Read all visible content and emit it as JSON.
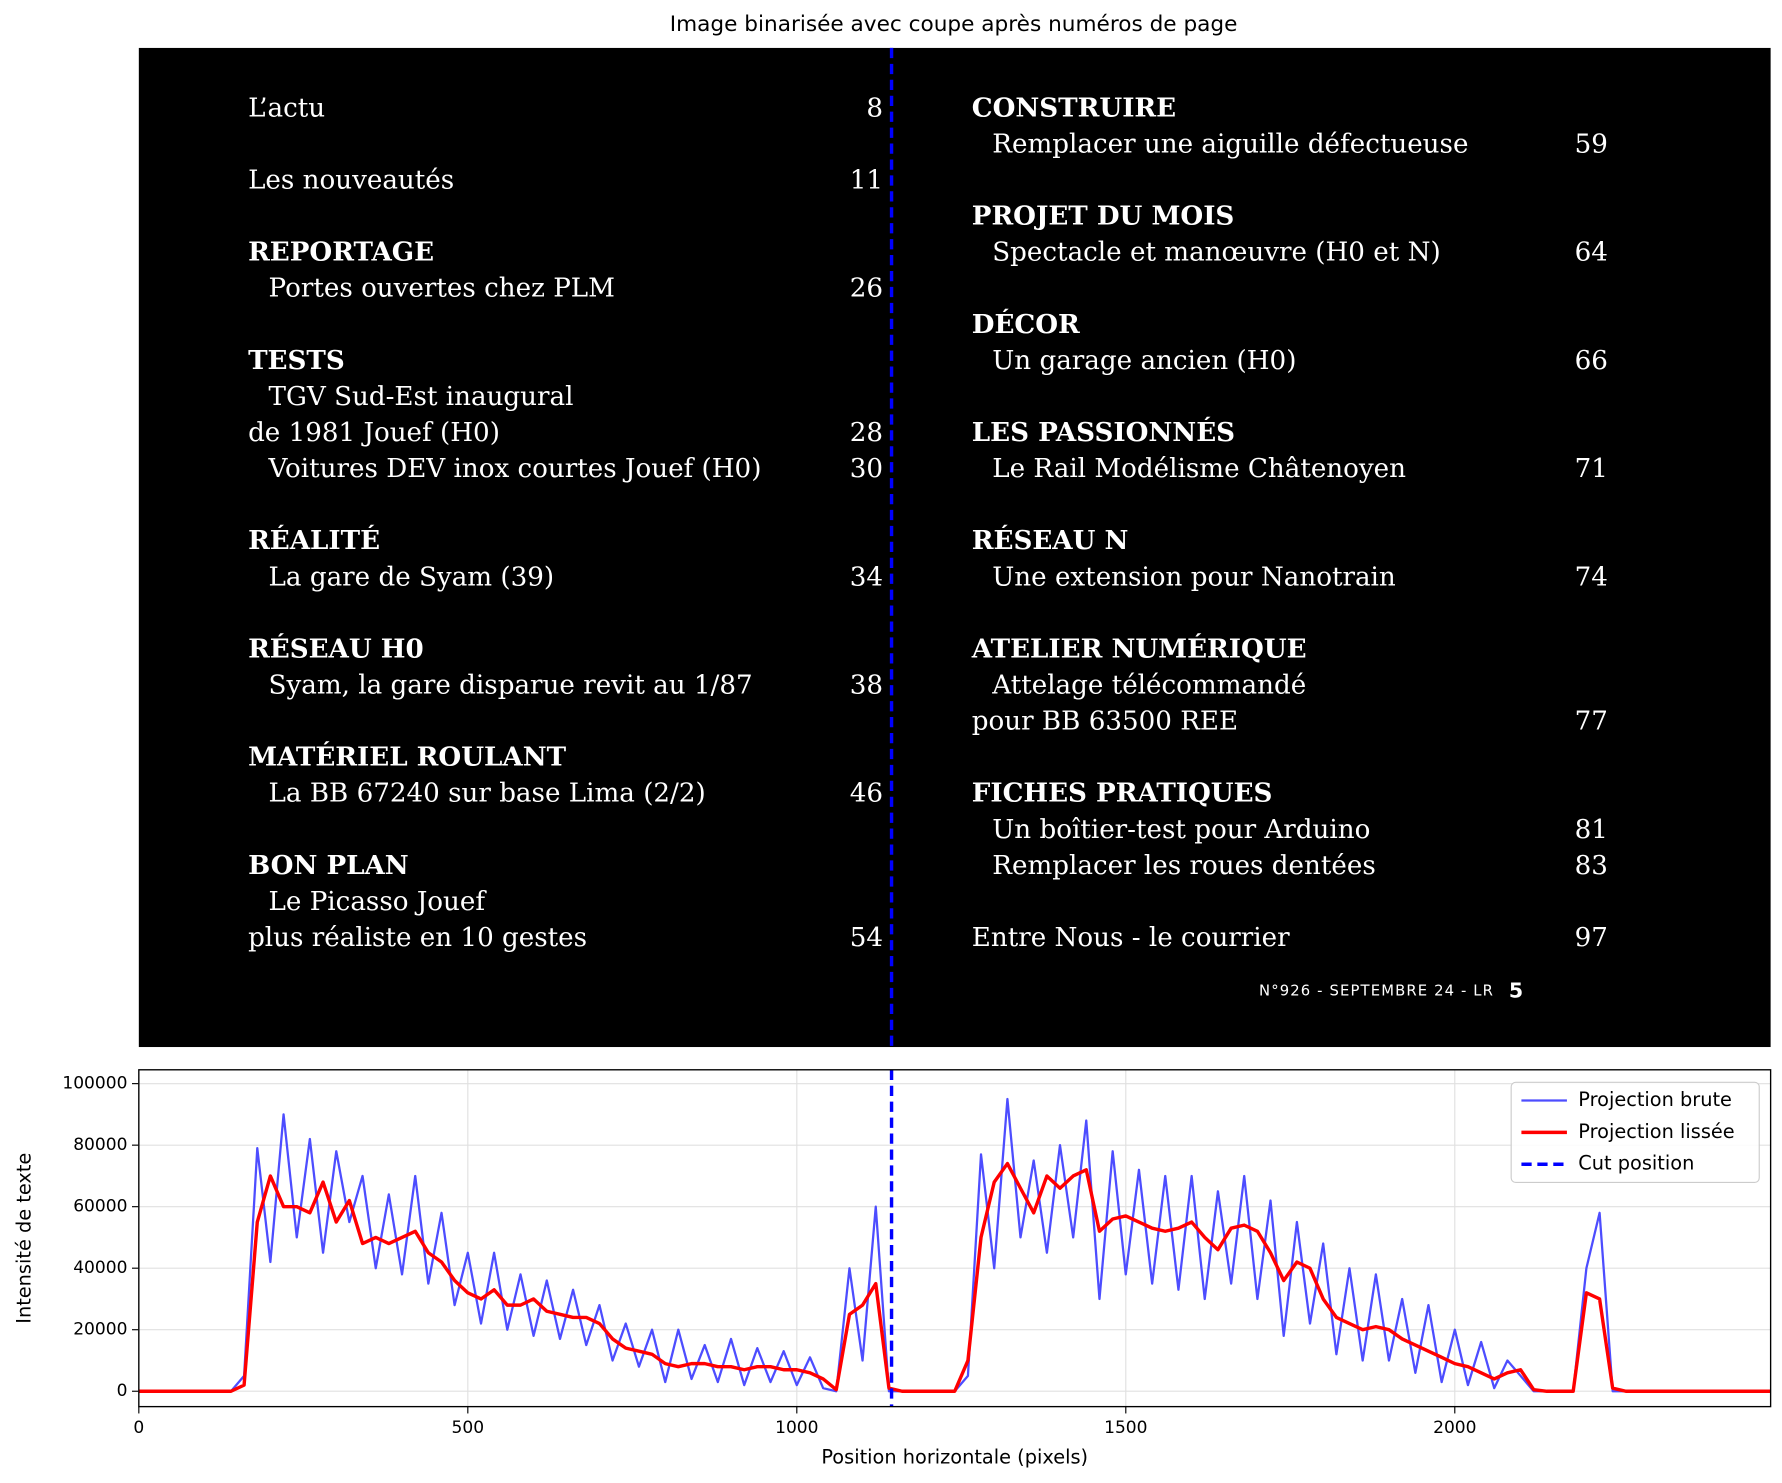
{
  "title": "Image binarisée avec coupe après numéros de page",
  "image": {
    "columns": [
      [
        [
          {
            "text": "L’actu",
            "page": 8,
            "style": "plain"
          }
        ],
        [
          {
            "text": "Les nouveautés",
            "page": 11,
            "style": "plain"
          }
        ],
        [
          {
            "text": "REPORTAGE",
            "style": "heading"
          },
          {
            "text": "Portes ouvertes chez PLM",
            "page": 26,
            "style": "indent"
          }
        ],
        [
          {
            "text": "TESTS",
            "style": "heading"
          },
          {
            "text": "TGV Sud-Est inaugural",
            "style": "indent"
          },
          {
            "text": "de 1981 Jouef (H0)",
            "page": 28,
            "style": "plain"
          },
          {
            "text": "Voitures DEV inox courtes Jouef (H0)",
            "page": 30,
            "style": "indent"
          }
        ],
        [
          {
            "text": "RÉALITÉ",
            "style": "heading"
          },
          {
            "text": "La gare de Syam (39)",
            "page": 34,
            "style": "indent"
          }
        ],
        [
          {
            "text": "RÉSEAU H0",
            "style": "heading"
          },
          {
            "text": "Syam, la gare disparue revit au 1/87",
            "page": 38,
            "style": "indent"
          }
        ],
        [
          {
            "text": "MATÉRIEL ROULANT",
            "style": "heading"
          },
          {
            "text": "La BB 67240 sur base Lima (2/2)",
            "page": 46,
            "style": "indent"
          }
        ],
        [
          {
            "text": "BON PLAN",
            "style": "heading"
          },
          {
            "text": "Le Picasso Jouef",
            "style": "indent"
          },
          {
            "text": "plus réaliste en 10 gestes",
            "page": 54,
            "style": "plain"
          }
        ]
      ],
      [
        [
          {
            "text": "CONSTRUIRE",
            "style": "heading"
          },
          {
            "text": "Remplacer une aiguille défectueuse",
            "page": 59,
            "style": "indent"
          }
        ],
        [
          {
            "text": "PROJET DU MOIS",
            "style": "heading"
          },
          {
            "text": "Spectacle et manœuvre (H0 et N)",
            "page": 64,
            "style": "indent"
          }
        ],
        [
          {
            "text": "DÉCOR",
            "style": "heading"
          },
          {
            "text": "Un garage ancien (H0)",
            "page": 66,
            "style": "indent"
          }
        ],
        [
          {
            "text": "LES PASSIONNÉS",
            "style": "heading"
          },
          {
            "text": "Le Rail Modélisme Châtenoyen",
            "page": 71,
            "style": "indent"
          }
        ],
        [
          {
            "text": "RÉSEAU N",
            "style": "heading"
          },
          {
            "text": "Une extension pour Nanotrain",
            "page": 74,
            "style": "indent"
          }
        ],
        [
          {
            "text": "ATELIER NUMÉRIQUE",
            "style": "heading"
          },
          {
            "text": "Attelage télécommandé",
            "style": "indent"
          },
          {
            "text": "pour BB 63500 REE",
            "page": 77,
            "style": "plain"
          }
        ],
        [
          {
            "text": "FICHES PRATIQUES",
            "style": "heading"
          },
          {
            "text": "Un boîtier-test pour Arduino",
            "page": 81,
            "style": "indent"
          },
          {
            "text": "Remplacer les roues dentées",
            "page": 83,
            "style": "indent"
          }
        ],
        [
          {
            "text": "Entre Nous - le courrier",
            "page": 97,
            "style": "plain"
          }
        ]
      ]
    ],
    "footer": {
      "issue": "N°926 - SEPTEMBRE 24 - LR",
      "page": "5"
    }
  },
  "chart_data": {
    "type": "line",
    "x_label": "Position horizontale (pixels)",
    "y_label": "Intensité de texte",
    "x": [
      0,
      20,
      40,
      60,
      80,
      100,
      120,
      140,
      160,
      180,
      200,
      220,
      240,
      260,
      280,
      300,
      320,
      340,
      360,
      380,
      400,
      420,
      440,
      460,
      480,
      500,
      520,
      540,
      560,
      580,
      600,
      620,
      640,
      660,
      680,
      700,
      720,
      740,
      760,
      780,
      800,
      820,
      840,
      860,
      880,
      900,
      920,
      940,
      960,
      980,
      1000,
      1020,
      1040,
      1060,
      1080,
      1100,
      1120,
      1140,
      1160,
      1180,
      1200,
      1220,
      1240,
      1260,
      1280,
      1300,
      1320,
      1340,
      1360,
      1380,
      1400,
      1420,
      1440,
      1460,
      1480,
      1500,
      1520,
      1540,
      1560,
      1580,
      1600,
      1620,
      1640,
      1660,
      1680,
      1700,
      1720,
      1740,
      1760,
      1780,
      1800,
      1820,
      1840,
      1860,
      1880,
      1900,
      1920,
      1940,
      1960,
      1980,
      2000,
      2020,
      2040,
      2060,
      2080,
      2100,
      2120,
      2140,
      2160,
      2180,
      2200,
      2220,
      2240,
      2260,
      2280,
      2300,
      2320,
      2340,
      2360,
      2380,
      2400,
      2420,
      2440,
      2460,
      2480
    ],
    "series": [
      {
        "name": "Projection brute",
        "color": "#4d4dff",
        "width": 2,
        "values": [
          0,
          0,
          0,
          0,
          0,
          0,
          0,
          0,
          5000,
          79000,
          42000,
          90000,
          50000,
          82000,
          45000,
          78000,
          55000,
          70000,
          40000,
          64000,
          38000,
          70000,
          35000,
          58000,
          28000,
          45000,
          22000,
          45000,
          20000,
          38000,
          18000,
          36000,
          17000,
          33000,
          15000,
          28000,
          10000,
          22000,
          8000,
          20000,
          3000,
          20000,
          4000,
          15000,
          3000,
          17000,
          2000,
          14000,
          3000,
          13000,
          2000,
          11000,
          1000,
          0,
          40000,
          10000,
          60000,
          0,
          0,
          0,
          0,
          0,
          0,
          5000,
          77000,
          40000,
          95000,
          50000,
          75000,
          45000,
          80000,
          50000,
          88000,
          30000,
          78000,
          38000,
          72000,
          35000,
          70000,
          33000,
          70000,
          30000,
          65000,
          35000,
          70000,
          30000,
          62000,
          18000,
          55000,
          22000,
          48000,
          12000,
          40000,
          10000,
          38000,
          10000,
          30000,
          6000,
          28000,
          3000,
          20000,
          2000,
          16000,
          1000,
          10000,
          5000,
          0,
          0,
          0,
          0,
          40000,
          58000,
          0,
          0,
          0,
          0,
          0,
          0,
          0,
          0,
          0,
          0,
          0,
          0,
          0
        ]
      },
      {
        "name": "Projection lissée",
        "color": "#ff0000",
        "width": 3,
        "values": [
          0,
          0,
          0,
          0,
          0,
          0,
          0,
          0,
          2000,
          55000,
          70000,
          60000,
          60000,
          58000,
          68000,
          55000,
          62000,
          48000,
          50000,
          48000,
          50000,
          52000,
          45000,
          42000,
          36000,
          32000,
          30000,
          33000,
          28000,
          28000,
          30000,
          26000,
          25000,
          24000,
          24000,
          22000,
          17000,
          14000,
          13000,
          12000,
          9000,
          8000,
          9000,
          9000,
          8000,
          8000,
          7000,
          8000,
          8000,
          7000,
          7000,
          6000,
          4000,
          500,
          25000,
          28000,
          35000,
          1000,
          0,
          0,
          0,
          0,
          0,
          10000,
          50000,
          68000,
          74000,
          66000,
          58000,
          70000,
          66000,
          70000,
          72000,
          52000,
          56000,
          57000,
          55000,
          53000,
          52000,
          53000,
          55000,
          50000,
          46000,
          53000,
          54000,
          52000,
          45000,
          36000,
          42000,
          40000,
          30000,
          24000,
          22000,
          20000,
          21000,
          20000,
          17000,
          15000,
          13000,
          11000,
          9000,
          8000,
          6000,
          4000,
          6000,
          7000,
          500,
          0,
          0,
          0,
          32000,
          30000,
          1000,
          0,
          0,
          0,
          0,
          0,
          0,
          0,
          0,
          0,
          0,
          0,
          0
        ]
      }
    ],
    "cut": {
      "name": "Cut position",
      "value": 1144,
      "color": "#0000ff"
    },
    "xlim": [
      0,
      2480
    ],
    "ylim": [
      -5000,
      104500
    ],
    "xticks": [
      0,
      500,
      1000,
      1500,
      2000
    ],
    "yticks": [
      0,
      20000,
      40000,
      60000,
      80000,
      100000
    ],
    "grid": true,
    "legend": "upper right"
  }
}
